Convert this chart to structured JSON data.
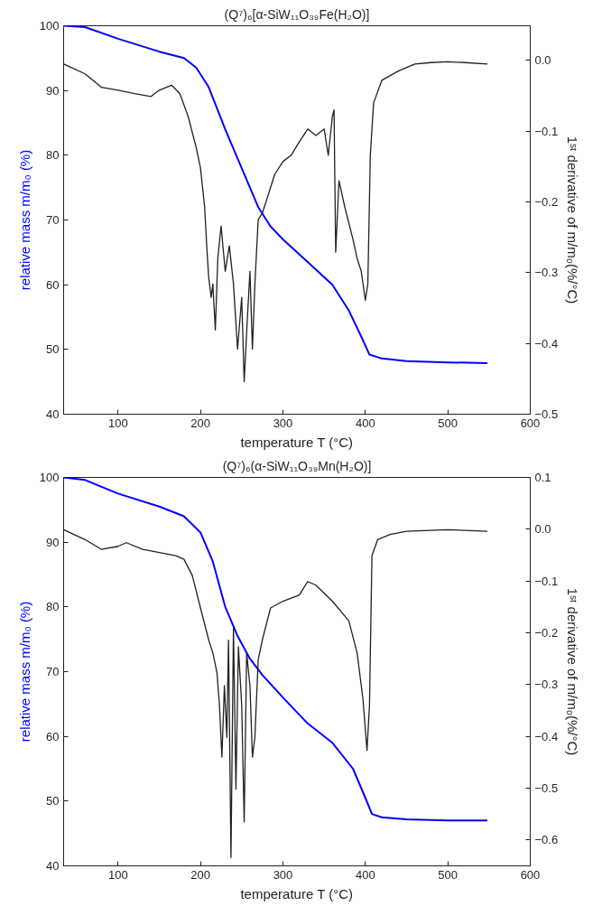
{
  "chart_data": [
    {
      "type": "line",
      "title": "(Q⁷)₆[α-SiW₁₁O₃₉Fe(H₂O)]",
      "xlabel": "temperature T (°C)",
      "ylabel": "relative mass m/m₀ (%)",
      "y2label": "1ˢᵗ derivative of m/m₀(%/°C)",
      "xlim": [
        34,
        600
      ],
      "xticks": [
        100,
        200,
        300,
        400,
        500,
        600
      ],
      "ylim": [
        40,
        100
      ],
      "yticks": [
        40,
        50,
        60,
        70,
        80,
        90,
        100
      ],
      "y2lim": [
        -0.5,
        0.049
      ],
      "y2ticks": [
        -0.5,
        -0.4,
        -0.3,
        -0.2,
        -0.1,
        {
          "value": 0,
          "label": "0.0"
        }
      ],
      "grid": false,
      "series": [
        {
          "color": "#0000ff",
          "x": [
            34,
            60,
            100,
            150,
            180,
            195,
            210,
            230,
            250,
            270,
            285,
            300,
            330,
            360,
            380,
            395,
            405,
            420,
            450,
            500,
            548
          ],
          "values": [
            100,
            99.8,
            98,
            96,
            95,
            93.5,
            90.5,
            84,
            78,
            72,
            69,
            67,
            63.5,
            60,
            56,
            52,
            49.2,
            48.6,
            48.2,
            48.0,
            47.9
          ]
        },
        {
          "color": "#231f20",
          "axis": "y2",
          "x": [
            34,
            60,
            80,
            100,
            120,
            140,
            150,
            165,
            175,
            185,
            195,
            200,
            205,
            208,
            210,
            213,
            215,
            218,
            221,
            225,
            230,
            235,
            240,
            245,
            250,
            253,
            257,
            260,
            263,
            266,
            270,
            275,
            280,
            290,
            300,
            310,
            320,
            330,
            340,
            350,
            355,
            360,
            362,
            364,
            368,
            375,
            385,
            390,
            395,
            400,
            403,
            406,
            410,
            420,
            440,
            460,
            480,
            500,
            520,
            548
          ],
          "values": [
            -0.005,
            -0.019,
            -0.038,
            -0.042,
            -0.047,
            -0.051,
            -0.042,
            -0.035,
            -0.047,
            -0.079,
            -0.124,
            -0.152,
            -0.207,
            -0.271,
            -0.307,
            -0.335,
            -0.316,
            -0.381,
            -0.28,
            -0.234,
            -0.298,
            -0.262,
            -0.316,
            -0.408,
            -0.335,
            -0.454,
            -0.362,
            -0.298,
            -0.408,
            -0.316,
            -0.225,
            -0.216,
            -0.198,
            -0.161,
            -0.143,
            -0.134,
            -0.115,
            -0.097,
            -0.106,
            -0.097,
            -0.134,
            -0.079,
            -0.07,
            -0.271,
            -0.17,
            -0.207,
            -0.253,
            -0.28,
            -0.298,
            -0.339,
            -0.316,
            -0.134,
            -0.06,
            -0.028,
            -0.015,
            -0.005,
            -0.003,
            -0.002,
            -0.003,
            -0.005
          ]
        }
      ]
    },
    {
      "type": "line",
      "title": "(Q⁷)₆(α-SiW₁₁O₃₉Mn(H₂O)]",
      "xlabel": "temperature T (°C)",
      "ylabel": "relative mass m/m₀ (%)",
      "y2label": "1ˢᵗ derivative of m/m₀(%/°C)",
      "xlim": [
        34,
        600
      ],
      "xticks": [
        100,
        200,
        300,
        400,
        500,
        600
      ],
      "ylim": [
        40,
        100
      ],
      "yticks": [
        40,
        50,
        60,
        70,
        80,
        90,
        100
      ],
      "y2lim": [
        -0.65,
        0.1
      ],
      "y2ticks": [
        -0.6,
        -0.5,
        -0.4,
        -0.3,
        -0.2,
        -0.1,
        {
          "value": 0,
          "label": "0.0"
        },
        0.1
      ],
      "grid": false,
      "series": [
        {
          "color": "#0000ff",
          "x": [
            34,
            60,
            100,
            150,
            180,
            200,
            215,
            230,
            245,
            260,
            275,
            300,
            330,
            360,
            385,
            400,
            408,
            420,
            450,
            500,
            548
          ],
          "values": [
            100,
            99.6,
            97.5,
            95.5,
            94,
            91.5,
            87,
            80,
            75.5,
            72,
            69.5,
            66,
            62,
            59,
            55,
            50.5,
            48,
            47.5,
            47.2,
            47.0,
            47.0
          ]
        },
        {
          "color": "#231f20",
          "axis": "y2",
          "x": [
            34,
            60,
            80,
            100,
            110,
            130,
            150,
            170,
            180,
            190,
            200,
            210,
            215,
            220,
            223,
            226,
            229,
            232,
            234,
            237,
            240,
            243,
            246,
            250,
            253,
            256,
            260,
            263,
            266,
            270,
            275,
            285,
            300,
            320,
            330,
            340,
            360,
            380,
            390,
            397,
            402,
            405,
            408,
            415,
            430,
            450,
            500,
            548
          ],
          "values": [
            -0.001,
            -0.02,
            -0.039,
            -0.033,
            -0.026,
            -0.039,
            -0.045,
            -0.051,
            -0.058,
            -0.089,
            -0.152,
            -0.214,
            -0.239,
            -0.277,
            -0.34,
            -0.44,
            -0.302,
            -0.402,
            -0.214,
            -0.634,
            -0.189,
            -0.502,
            -0.227,
            -0.34,
            -0.565,
            -0.239,
            -0.302,
            -0.44,
            -0.402,
            -0.252,
            -0.214,
            -0.152,
            -0.139,
            -0.127,
            -0.101,
            -0.108,
            -0.139,
            -0.177,
            -0.239,
            -0.327,
            -0.427,
            -0.34,
            -0.051,
            -0.02,
            -0.01,
            -0.004,
            -0.001,
            -0.004
          ]
        }
      ]
    }
  ]
}
